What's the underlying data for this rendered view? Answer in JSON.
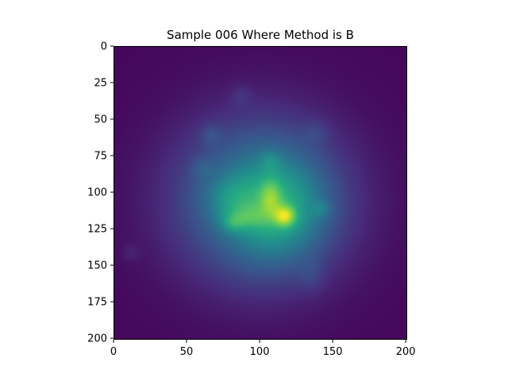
{
  "chart_data": {
    "type": "heatmap",
    "title": "Sample 006 Where Method is B",
    "xlabel": "",
    "ylabel": "",
    "xlim": [
      0,
      201
    ],
    "ylim": [
      201,
      0
    ],
    "x_ticks": [
      0,
      50,
      100,
      150,
      200
    ],
    "y_ticks": [
      0,
      25,
      50,
      75,
      100,
      125,
      150,
      175,
      200
    ],
    "x_tick_labels": [
      "0",
      "50",
      "100",
      "150",
      "200"
    ],
    "y_tick_labels": [
      "0",
      "25",
      "50",
      "75",
      "100",
      "125",
      "150",
      "175",
      "200"
    ],
    "colormap": "viridis",
    "colorbar": false,
    "grid": false,
    "approx_components": [
      {
        "x": 100,
        "y": 105,
        "sx": 42,
        "sy": 40,
        "a": 0.42
      },
      {
        "x": 112,
        "y": 112,
        "sx": 22,
        "sy": 24,
        "a": 0.25
      },
      {
        "x": 117,
        "y": 116,
        "sx": 5,
        "sy": 5,
        "a": 0.35
      },
      {
        "x": 107,
        "y": 103,
        "sx": 5,
        "sy": 9,
        "a": 0.2
      },
      {
        "x": 90,
        "y": 117,
        "sx": 11,
        "sy": 6,
        "a": 0.15
      },
      {
        "x": 81,
        "y": 121,
        "sx": 5,
        "sy": 4,
        "a": 0.12
      },
      {
        "x": 142,
        "y": 111,
        "sx": 4,
        "sy": 4,
        "a": 0.1
      },
      {
        "x": 107,
        "y": 78,
        "sx": 5,
        "sy": 5,
        "a": 0.1
      },
      {
        "x": 87,
        "y": 33,
        "sx": 5,
        "sy": 5,
        "a": 0.06
      },
      {
        "x": 66,
        "y": 60,
        "sx": 5,
        "sy": 5,
        "a": 0.08
      },
      {
        "x": 11,
        "y": 141,
        "sx": 4,
        "sy": 4,
        "a": 0.06
      },
      {
        "x": 135,
        "y": 157,
        "sx": 6,
        "sy": 8,
        "a": 0.06
      },
      {
        "x": 138,
        "y": 58,
        "sx": 6,
        "sy": 6,
        "a": 0.06
      },
      {
        "x": 60,
        "y": 83,
        "sx": 5,
        "sy": 5,
        "a": 0.07
      },
      {
        "x": 80,
        "y": 103,
        "sx": 12,
        "sy": 10,
        "a": 0.12
      }
    ],
    "background_level": 0.02
  }
}
